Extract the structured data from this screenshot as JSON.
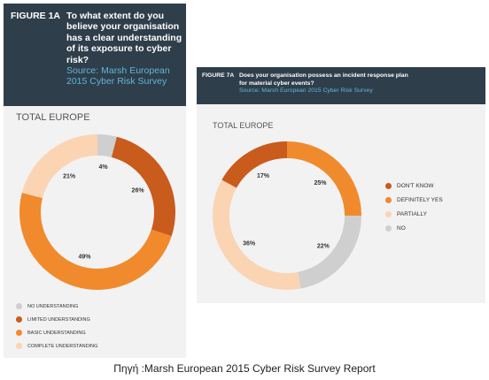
{
  "chart_data": [
    {
      "type": "pie",
      "figure_label": "FIGURE 1A",
      "title": "To what extent do you believe your organisation has a clear understanding of its exposure to cyber risk?",
      "source": "Source: Marsh European 2015 Cyber Risk Survey",
      "subtitle": "TOTAL EUROPE",
      "legend_position": "bottom-left",
      "categories": [
        "NO UNDERSTANDING",
        "LIMITED UNDERSTANDING",
        "BASIC UNDERSTANDING",
        "COMPLETE UNDERSTANDING"
      ],
      "values": [
        4,
        26,
        49,
        21
      ],
      "labels": [
        "4%",
        "26%",
        "49%",
        "21%"
      ],
      "colors": [
        "#cfcfcf",
        "#c95b1d",
        "#f08a2c",
        "#fbd4b4"
      ]
    },
    {
      "type": "pie",
      "figure_label": "FIGURE 7A",
      "title": "Does your organisation possess an incident response plan for material cyber events?",
      "source": "Source: Marsh European 2015 Cyber Risk Survey",
      "subtitle": "TOTAL EUROPE",
      "legend_position": "right",
      "categories": [
        "DON'T KNOW",
        "DEFINITELY YES",
        "PARTIALLY",
        "NO"
      ],
      "values": [
        17,
        25,
        36,
        22
      ],
      "labels": [
        "17%",
        "25%",
        "36%",
        "22%"
      ],
      "colors": [
        "#c95b1d",
        "#f08a2c",
        "#fbd4b4",
        "#cfcfcf"
      ],
      "draw_order": [
        1,
        3,
        2,
        0
      ]
    }
  ],
  "caption": "Πηγή :Marsh European 2015 Cyber Risk Survey Report"
}
